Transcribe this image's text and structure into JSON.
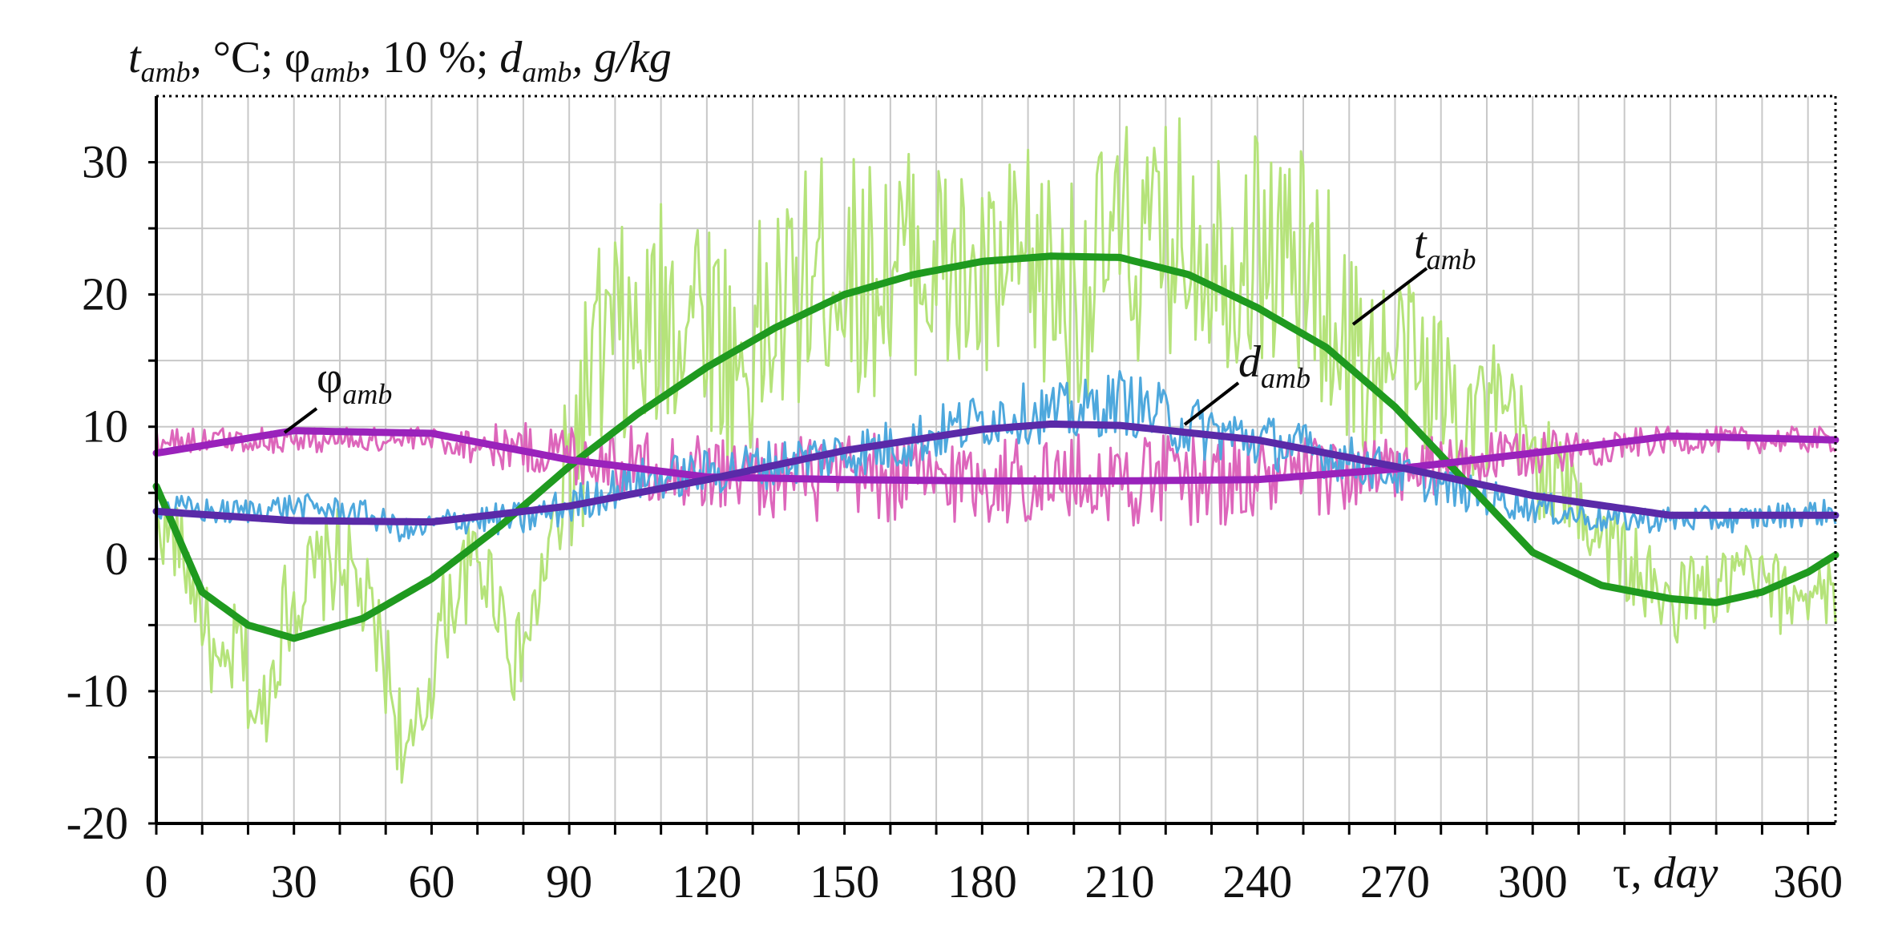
{
  "chart_data": {
    "type": "line",
    "title": "",
    "ylabel": {
      "t_base": "t",
      "t_sub": "amb",
      "t_rest": ", °C; ",
      "phi_base": "φ",
      "phi_sub": "amb",
      "phi_rest": ", 10 %; ",
      "d_base": "d",
      "d_sub": "amb",
      "d_rest": ", g/kg"
    },
    "xlabel": {
      "tau": "τ, ",
      "unit": "day"
    },
    "xlim": [
      0,
      366
    ],
    "ylim": [
      -20,
      35
    ],
    "x_ticks": [
      0,
      30,
      60,
      90,
      120,
      150,
      180,
      210,
      240,
      270,
      300,
      360
    ],
    "y_ticks": [
      -20,
      -10,
      0,
      10,
      20,
      30
    ],
    "colors": {
      "t_daily": "#b5e37a",
      "t_fit": "#1f9a1f",
      "phi_daily": "#dd66bb",
      "phi_fit": "#9a22bb",
      "d_daily": "#4ea8dd",
      "d_fit": "#5a2aa8"
    },
    "series": [
      {
        "name": "t_amb daily (ambient temperature, °C)",
        "style": "noisy",
        "anchors": [
          [
            0,
            3
          ],
          [
            5,
            1
          ],
          [
            10,
            -4
          ],
          [
            14,
            -10
          ],
          [
            18,
            -6
          ],
          [
            22,
            -13
          ],
          [
            25,
            -9
          ],
          [
            28,
            -4
          ],
          [
            32,
            -2
          ],
          [
            36,
            -1
          ],
          [
            40,
            0
          ],
          [
            45,
            -3
          ],
          [
            50,
            -8
          ],
          [
            55,
            -16
          ],
          [
            58,
            -12
          ],
          [
            62,
            -5
          ],
          [
            66,
            -2
          ],
          [
            70,
            0
          ],
          [
            75,
            -3
          ],
          [
            78,
            -8
          ],
          [
            82,
            -5
          ],
          [
            85,
            0
          ],
          [
            88,
            3
          ],
          [
            91,
            8
          ],
          [
            95,
            14
          ],
          [
            100,
            17
          ],
          [
            105,
            15
          ],
          [
            110,
            18
          ],
          [
            115,
            19
          ],
          [
            118,
            20
          ],
          [
            122,
            18
          ],
          [
            126,
            14
          ],
          [
            130,
            16
          ],
          [
            135,
            18
          ],
          [
            140,
            20
          ],
          [
            145,
            22
          ],
          [
            150,
            22
          ],
          [
            155,
            21
          ],
          [
            160,
            22
          ],
          [
            165,
            23
          ],
          [
            170,
            22
          ],
          [
            175,
            21
          ],
          [
            180,
            20
          ],
          [
            185,
            21
          ],
          [
            190,
            22
          ],
          [
            195,
            21
          ],
          [
            200,
            20
          ],
          [
            205,
            22
          ],
          [
            210,
            24
          ],
          [
            215,
            23
          ],
          [
            220,
            24
          ],
          [
            225,
            25
          ],
          [
            230,
            24
          ],
          [
            235,
            23
          ],
          [
            240,
            24
          ],
          [
            245,
            23
          ],
          [
            250,
            22
          ],
          [
            255,
            20
          ],
          [
            260,
            16
          ],
          [
            265,
            14
          ],
          [
            270,
            15
          ],
          [
            275,
            14
          ],
          [
            280,
            13
          ],
          [
            285,
            12
          ],
          [
            290,
            11
          ],
          [
            295,
            10
          ],
          [
            300,
            8
          ],
          [
            305,
            6
          ],
          [
            310,
            4
          ],
          [
            315,
            2
          ],
          [
            320,
            0
          ],
          [
            325,
            -2
          ],
          [
            330,
            -4
          ],
          [
            335,
            -2
          ],
          [
            340,
            -3
          ],
          [
            345,
            -1
          ],
          [
            350,
            -2
          ],
          [
            355,
            -3
          ],
          [
            360,
            -2
          ],
          [
            365,
            -3
          ]
        ],
        "amplitude_profile": [
          [
            0,
            3
          ],
          [
            30,
            4
          ],
          [
            60,
            4
          ],
          [
            85,
            3
          ],
          [
            91,
            9
          ],
          [
            110,
            9
          ],
          [
            150,
            9
          ],
          [
            200,
            9
          ],
          [
            250,
            9
          ],
          [
            262,
            8
          ],
          [
            290,
            6
          ],
          [
            305,
            4
          ],
          [
            330,
            3
          ],
          [
            365,
            3
          ]
        ]
      },
      {
        "name": "t_amb fitted",
        "style": "fit",
        "values": [
          [
            0,
            5.5
          ],
          [
            10,
            -2.5
          ],
          [
            20,
            -5
          ],
          [
            30,
            -6
          ],
          [
            45,
            -4.5
          ],
          [
            60,
            -1.5
          ],
          [
            75,
            2.5
          ],
          [
            90,
            7
          ],
          [
            105,
            11
          ],
          [
            120,
            14.5
          ],
          [
            135,
            17.5
          ],
          [
            150,
            20
          ],
          [
            165,
            21.5
          ],
          [
            180,
            22.5
          ],
          [
            195,
            22.9
          ],
          [
            210,
            22.8
          ],
          [
            225,
            21.5
          ],
          [
            240,
            19
          ],
          [
            255,
            16
          ],
          [
            270,
            11.5
          ],
          [
            285,
            6
          ],
          [
            300,
            0.5
          ],
          [
            315,
            -2
          ],
          [
            330,
            -3
          ],
          [
            340,
            -3.3
          ],
          [
            350,
            -2.5
          ],
          [
            360,
            -1
          ],
          [
            366,
            0.3
          ]
        ]
      },
      {
        "name": "φ_amb daily (relative humidity, 10 %)",
        "style": "noisy",
        "anchors": [
          [
            0,
            9
          ],
          [
            30,
            9
          ],
          [
            60,
            9
          ],
          [
            90,
            8
          ],
          [
            120,
            6.5
          ],
          [
            150,
            6
          ],
          [
            180,
            6
          ],
          [
            210,
            6
          ],
          [
            240,
            6
          ],
          [
            270,
            6.5
          ],
          [
            300,
            8
          ],
          [
            330,
            9
          ],
          [
            366,
            9
          ]
        ],
        "amplitude_profile": [
          [
            0,
            1
          ],
          [
            60,
            1
          ],
          [
            90,
            2.5
          ],
          [
            150,
            3.5
          ],
          [
            240,
            3.5
          ],
          [
            290,
            2
          ],
          [
            330,
            1
          ],
          [
            366,
            1
          ]
        ]
      },
      {
        "name": "φ_amb fitted",
        "style": "fit",
        "values": [
          [
            0,
            8
          ],
          [
            30,
            9.7
          ],
          [
            60,
            9.5
          ],
          [
            90,
            7.5
          ],
          [
            120,
            6.2
          ],
          [
            150,
            6
          ],
          [
            180,
            5.9
          ],
          [
            210,
            5.9
          ],
          [
            240,
            6
          ],
          [
            270,
            6.8
          ],
          [
            300,
            8
          ],
          [
            330,
            9.3
          ],
          [
            366,
            9
          ]
        ]
      },
      {
        "name": "d_amb daily (moisture content, g/kg)",
        "style": "noisy",
        "anchors": [
          [
            0,
            4
          ],
          [
            15,
            3.5
          ],
          [
            30,
            4
          ],
          [
            45,
            3.5
          ],
          [
            55,
            2
          ],
          [
            65,
            3
          ],
          [
            80,
            3
          ],
          [
            90,
            4
          ],
          [
            105,
            6
          ],
          [
            120,
            6.5
          ],
          [
            140,
            7.5
          ],
          [
            160,
            8.5
          ],
          [
            175,
            10
          ],
          [
            185,
            11
          ],
          [
            200,
            11
          ],
          [
            210,
            12
          ],
          [
            225,
            10
          ],
          [
            240,
            9
          ],
          [
            255,
            8
          ],
          [
            270,
            6.5
          ],
          [
            285,
            5
          ],
          [
            300,
            4
          ],
          [
            315,
            3
          ],
          [
            330,
            3
          ],
          [
            345,
            3
          ],
          [
            360,
            3.5
          ],
          [
            366,
            3.5
          ]
        ],
        "amplitude_profile": [
          [
            0,
            1
          ],
          [
            60,
            1
          ],
          [
            90,
            1.5
          ],
          [
            150,
            2
          ],
          [
            220,
            2.5
          ],
          [
            280,
            1.5
          ],
          [
            320,
            1
          ],
          [
            366,
            1
          ]
        ]
      },
      {
        "name": "d_amb fitted",
        "style": "fit",
        "values": [
          [
            0,
            3.6
          ],
          [
            30,
            2.9
          ],
          [
            60,
            2.8
          ],
          [
            90,
            4
          ],
          [
            120,
            6
          ],
          [
            150,
            8.2
          ],
          [
            180,
            9.8
          ],
          [
            195,
            10.2
          ],
          [
            210,
            10.1
          ],
          [
            240,
            9
          ],
          [
            270,
            7
          ],
          [
            300,
            4.8
          ],
          [
            330,
            3.3
          ],
          [
            366,
            3.3
          ]
        ]
      }
    ],
    "annotations": [
      {
        "text_base": "t",
        "text_sub": "amb",
        "at": [
          260,
          17
        ]
      },
      {
        "text_base": "φ",
        "text_sub": "amb",
        "at": [
          28,
          9.8
        ]
      },
      {
        "text_base": "d",
        "text_sub": "amb",
        "at": [
          224,
          10
        ]
      }
    ]
  }
}
